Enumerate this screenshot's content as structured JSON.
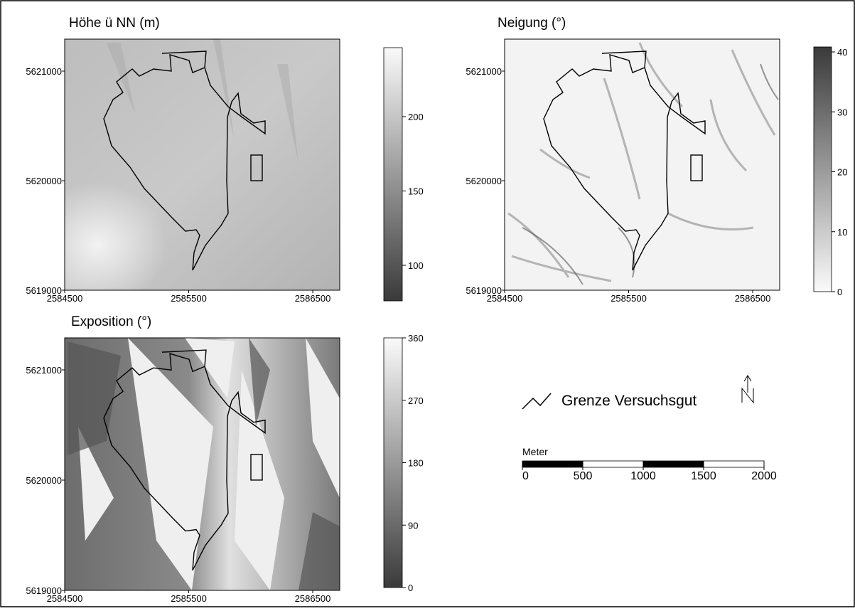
{
  "panels": [
    {
      "title": "Höhe ü NN (m)",
      "xticks": [
        2584500,
        2585500,
        2586500
      ],
      "yticks": [
        5621000,
        5620000,
        5619000
      ],
      "colorbar_ticks": [
        200,
        150,
        100
      ]
    },
    {
      "title": "Neigung (°)",
      "xticks": [
        2584500,
        2585500,
        2586500
      ],
      "yticks": [
        5621000,
        5620000,
        5619000
      ],
      "colorbar_ticks": [
        40,
        30,
        20,
        10,
        0
      ]
    },
    {
      "title": "Exposition (°)",
      "xticks": [
        2584500,
        2585500,
        2586500
      ],
      "yticks": [
        5621000,
        5620000,
        5619000
      ],
      "colorbar_ticks": [
        360,
        270,
        180,
        90,
        0
      ]
    }
  ],
  "legend": {
    "label": "Grenze Versuchsgut"
  },
  "scalebar": {
    "title": "Meter",
    "ticks": [
      0,
      500,
      1000,
      1500,
      2000
    ]
  }
}
